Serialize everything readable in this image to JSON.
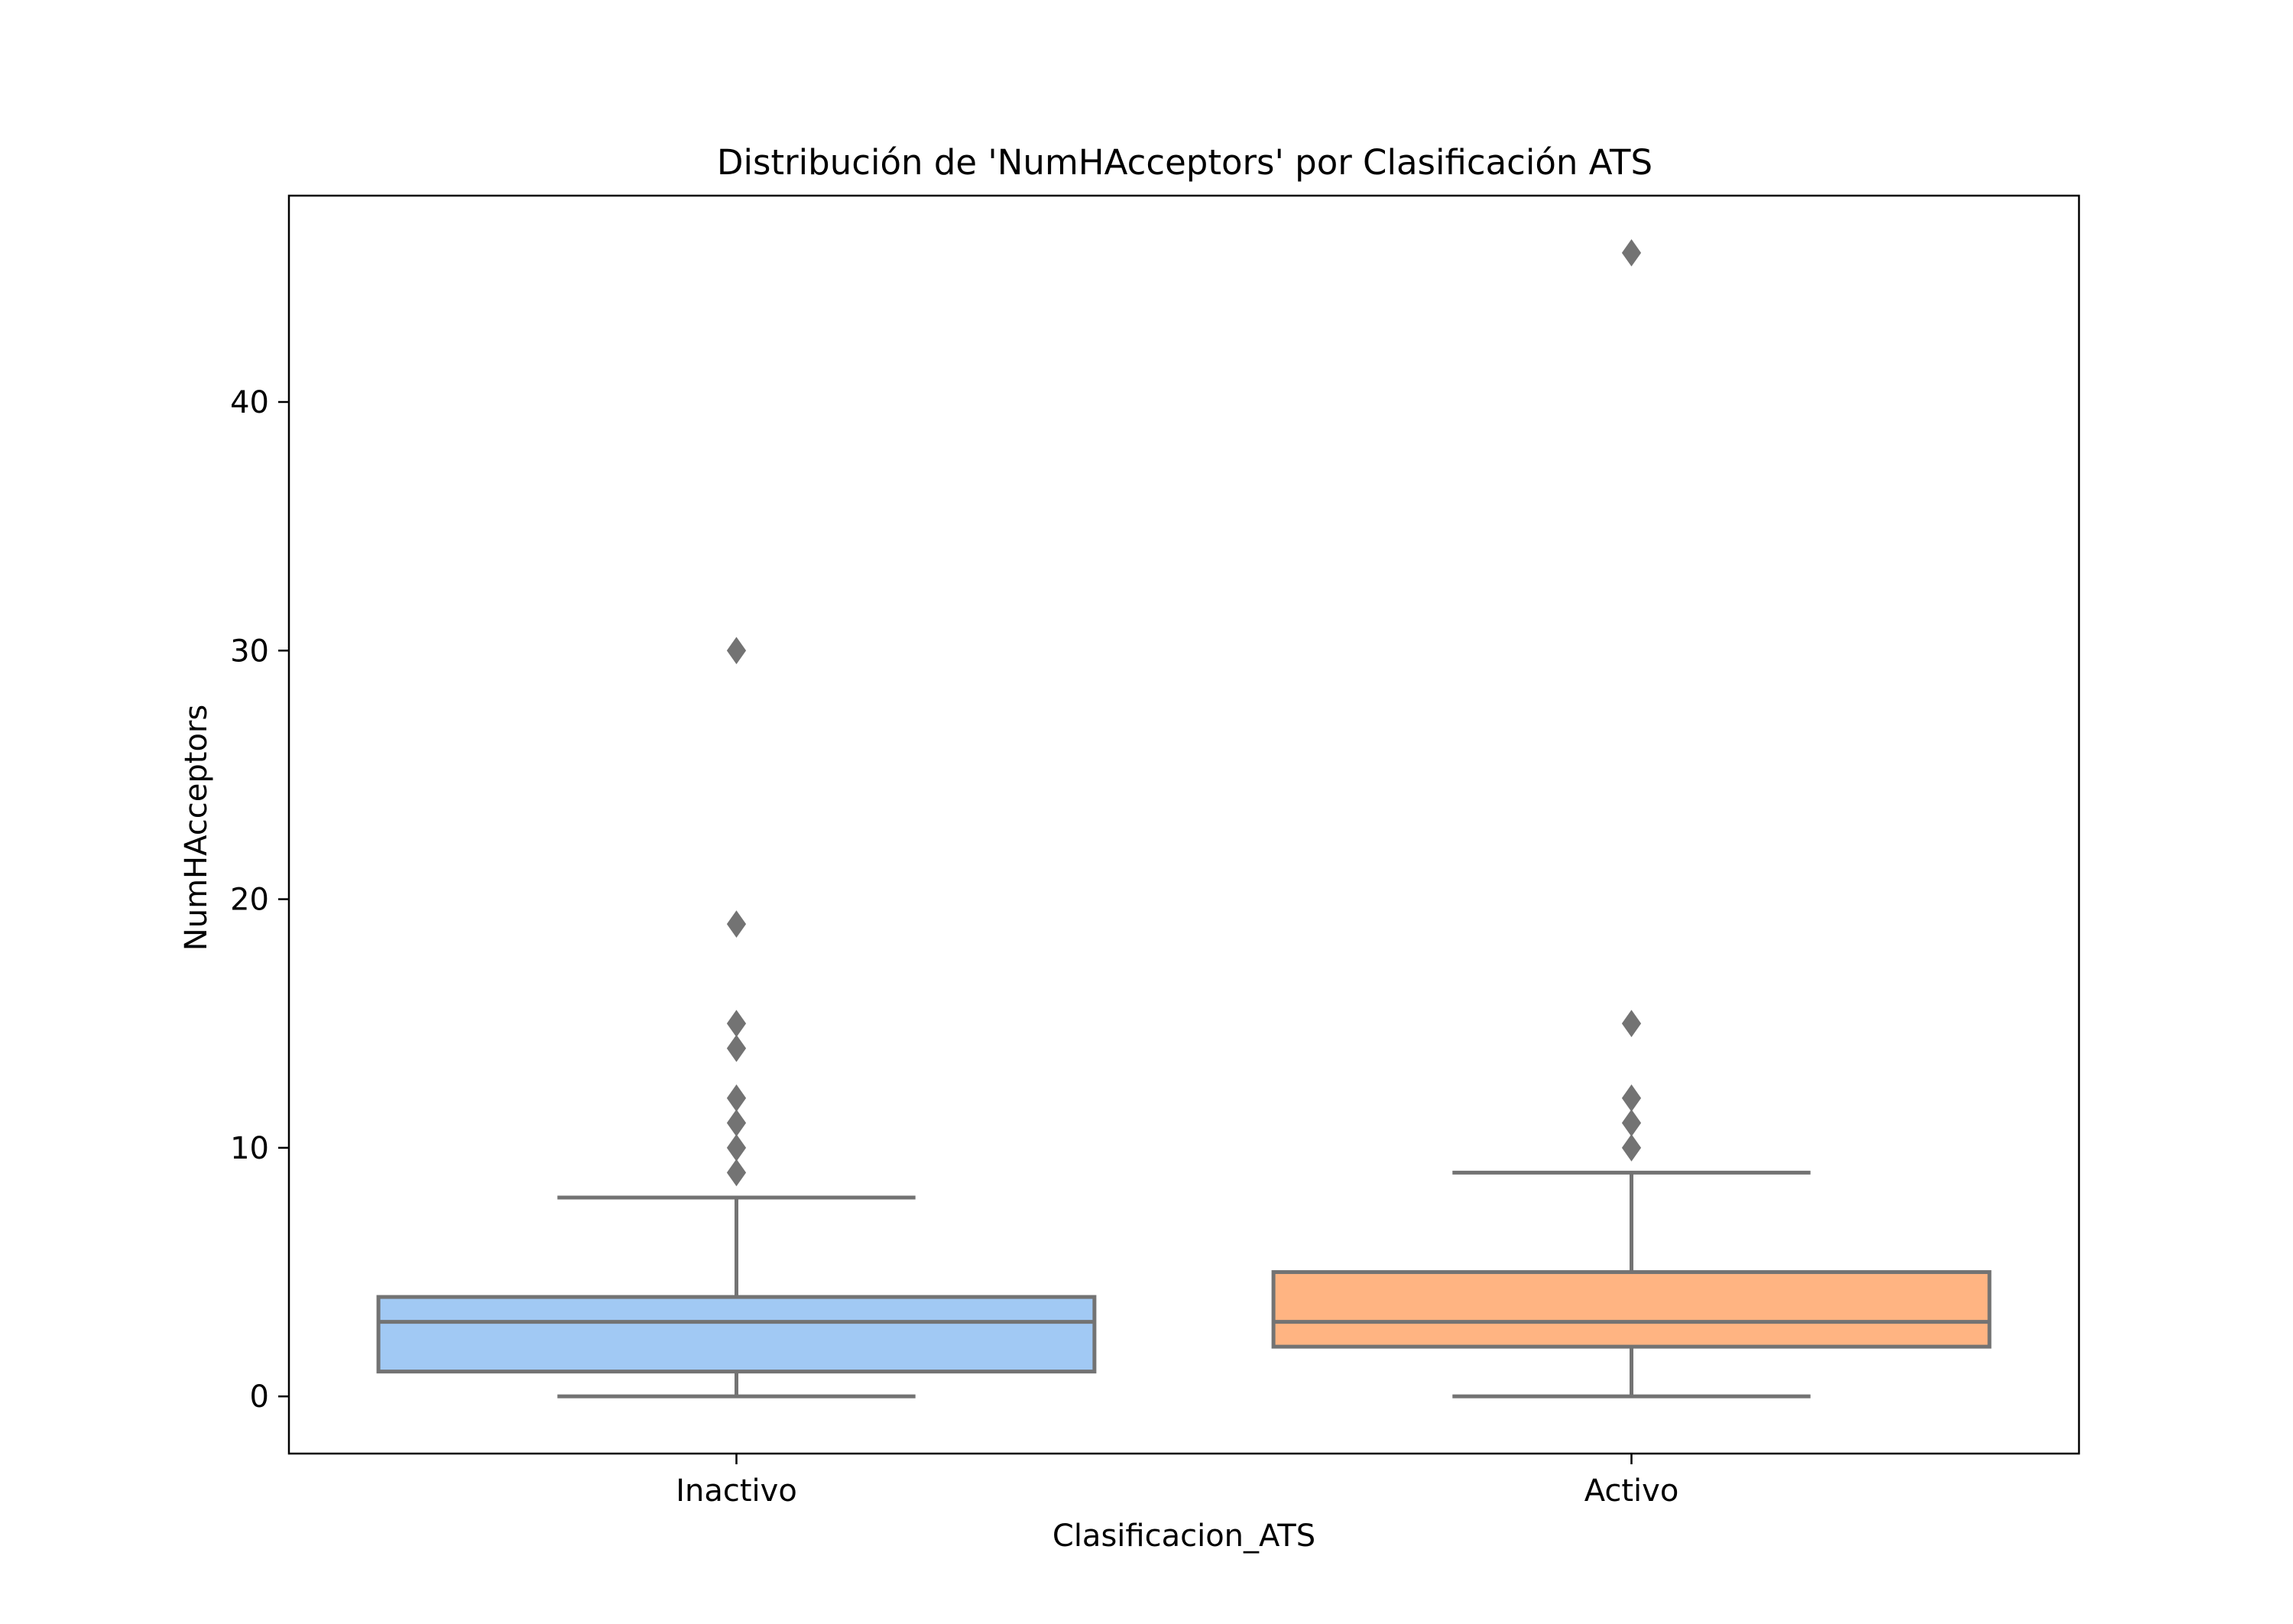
{
  "chart_data": {
    "type": "boxplot",
    "title": "Distribución de 'NumHAcceptors' por Clasificación ATS",
    "xlabel": "Clasificacion_ATS",
    "ylabel": "NumHAcceptors",
    "ylim": [
      -2.3,
      48.3
    ],
    "yticks": [
      0,
      10,
      20,
      30,
      40
    ],
    "grid": false,
    "legend": "none",
    "categories": [
      "Inactivo",
      "Activo"
    ],
    "boxes": [
      {
        "category": "Inactivo",
        "color": "#a1c9f4",
        "whisker_low": 0,
        "q1": 1,
        "median": 3,
        "q3": 4,
        "whisker_high": 8,
        "outliers": [
          9,
          10,
          11,
          12,
          14,
          15,
          19,
          30
        ]
      },
      {
        "category": "Activo",
        "color": "#ffb482",
        "whisker_low": 0,
        "q1": 2,
        "median": 3,
        "q3": 5,
        "whisker_high": 9,
        "outliers": [
          10,
          11,
          12,
          15,
          46
        ]
      }
    ],
    "line_color": "#737373"
  }
}
